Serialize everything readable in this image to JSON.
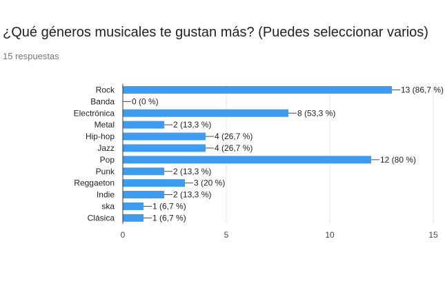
{
  "header": {
    "question": "¿Qué géneros musicales te gustan más? (Puedes seleccionar varios)",
    "responses": "15 respuestas"
  },
  "chart_data": {
    "type": "bar",
    "orientation": "horizontal",
    "categories": [
      "Rock",
      "Banda",
      "Electrónica",
      "Metal",
      "Hip-hop",
      "Jazz",
      "Pop",
      "Punk",
      "Reggaeton",
      "Indie",
      "ska",
      "Clásica"
    ],
    "values": [
      13,
      0,
      8,
      2,
      4,
      4,
      12,
      2,
      3,
      2,
      1,
      1
    ],
    "value_labels": [
      "13 (86,7 %)",
      "0 (0 %)",
      "8 (53,3 %)",
      "2 (13,3 %)",
      "4 (26,7 %)",
      "4 (26,7 %)",
      "12 (80 %)",
      "2 (13,3 %)",
      "3 (20 %)",
      "2 (13,3 %)",
      "1 (6,7 %)",
      "1 (6,7 %)"
    ],
    "xlim": [
      0,
      15
    ],
    "xticks": [
      0,
      5,
      10,
      15
    ],
    "grid": true,
    "bar_color": "#3d9cf0"
  }
}
